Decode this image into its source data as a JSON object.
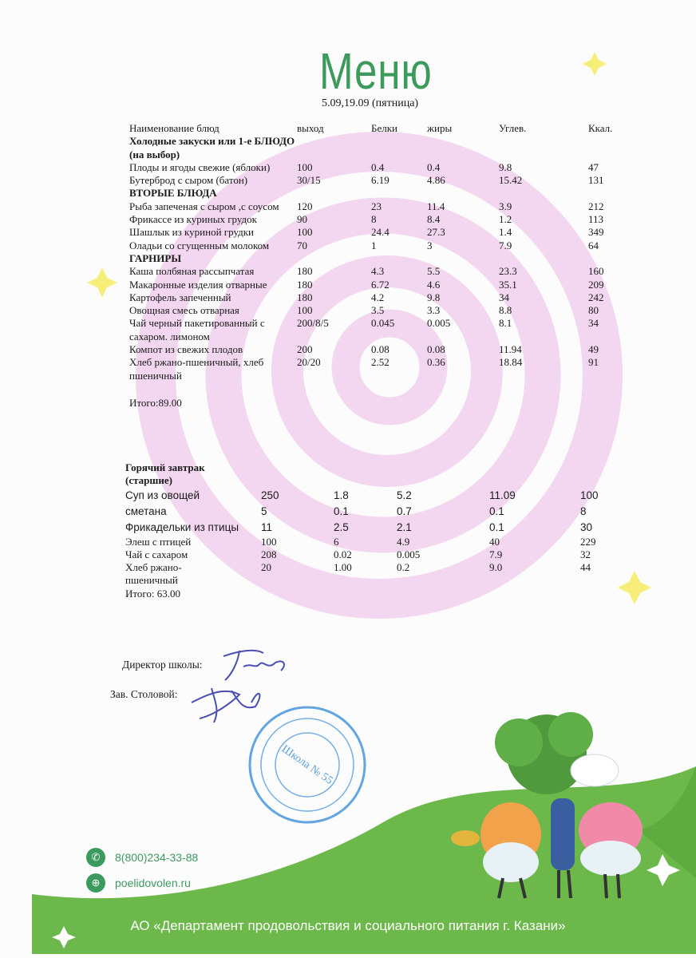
{
  "header": {
    "title": "Меню",
    "date": "5.09,19.09 (пятница)"
  },
  "columns": [
    "Наименование блюд",
    "выход",
    "Белки",
    "жиры",
    "Углев.",
    "Ккал."
  ],
  "lunch": {
    "rows": [
      {
        "section": "Холодные закуски или 1-е БЛЮДО  (на выбор)"
      },
      {
        "name": "Плоды и ягоды свежие (яблоки)",
        "values": [
          "100",
          "0.4",
          "0.4",
          "9.8",
          "47"
        ]
      },
      {
        "name": "Бутерброд с сыром (батон)",
        "values": [
          "30/15",
          "6.19",
          "4.86",
          "15.42",
          "131"
        ]
      },
      {
        "section": "ВТОРЫЕ БЛЮДА"
      },
      {
        "name": "Рыба запеченая с сыром ,с соусом",
        "values": [
          "120",
          "23",
          "11.4",
          "3.9",
          "212"
        ]
      },
      {
        "name": "Фрикассе из куриных грудок",
        "values": [
          "90",
          "8",
          "8.4",
          "1.2",
          "113"
        ]
      },
      {
        "name": "Шашлык из куриной грудки",
        "values": [
          "100",
          "24.4",
          "27.3",
          "1.4",
          "349"
        ]
      },
      {
        "name": "Оладьи со сгущенным молоком",
        "values": [
          "70",
          "1",
          "3",
          "7.9",
          "64"
        ]
      },
      {
        "section": "ГАРНИРЫ"
      },
      {
        "name": "Каша полбяная рассыпчатая",
        "values": [
          "180",
          "4.3",
          "5.5",
          "23.3",
          "160"
        ]
      },
      {
        "name": "Макаронные изделия отварные",
        "values": [
          "180",
          "6.72",
          "4.6",
          "35.1",
          "209"
        ]
      },
      {
        "name": "Картофель запеченный",
        "values": [
          "180",
          "4.2",
          "9.8",
          "34",
          "242"
        ]
      },
      {
        "name": "Овощная смесь отварная",
        "values": [
          "100",
          "3.5",
          "3.3",
          "8.8",
          "80"
        ]
      },
      {
        "name": "Чай черный пакетированный с сахаром. лимоном",
        "values": [
          "200/8/5",
          "0.045",
          "0.005",
          "8.1",
          "34"
        ]
      },
      {
        "name": "Компот из свежих плодов",
        "values": [
          "200",
          "0.08",
          "0.08",
          "11.94",
          "49"
        ]
      },
      {
        "name": "Хлеб ржано-пшеничный, хлеб пшеничный",
        "values": [
          "20/20",
          "2.52",
          "0.36",
          "18.84",
          "91"
        ]
      }
    ],
    "total": "Итого:89.00"
  },
  "breakfast": {
    "title": "Горячий завтрак (старшие)",
    "rows": [
      {
        "name": "Суп из овощей",
        "values": [
          "250",
          "1.8",
          "5.2",
          "11.09",
          "100"
        ],
        "sans": true
      },
      {
        "name": "сметана",
        "values": [
          "5",
          "0.1",
          "0.7",
          "0.1",
          "8"
        ],
        "sans": true
      },
      {
        "name": "Фрикадельки из птицы",
        "values": [
          "11",
          "2.5",
          "2.1",
          "0.1",
          "30"
        ],
        "sans": true
      },
      {
        "name": "Элеш с птицей",
        "values": [
          "100",
          "6",
          "4.9",
          "40",
          "229"
        ]
      },
      {
        "name": "Чай с сахаром",
        "values": [
          "208",
          "0.02",
          "0.005",
          "7.9",
          "32"
        ]
      },
      {
        "name": "Хлеб  ржано-пшеничный",
        "values": [
          "20",
          "1.00",
          "0.2",
          "9.0",
          "44"
        ]
      }
    ],
    "total": "Итого: 63.00"
  },
  "signatures": {
    "director": "Директор школы:",
    "canteen": "Зав. Столовой:"
  },
  "stamp": {
    "text": "Школа № 55"
  },
  "footer": {
    "phone": "8(800)234-33-88",
    "website": "poelidovolen.ru",
    "organization": "АО «Департамент продовольствия и социального питания г. Казани»",
    "icons": [
      "phone-icon",
      "globe-icon"
    ]
  },
  "colors": {
    "accent_green": "#3d9a5e",
    "grass": "#6cb84a",
    "spiral_pink": "#f1d3ee",
    "stamp_blue": "#3b8fd9"
  }
}
